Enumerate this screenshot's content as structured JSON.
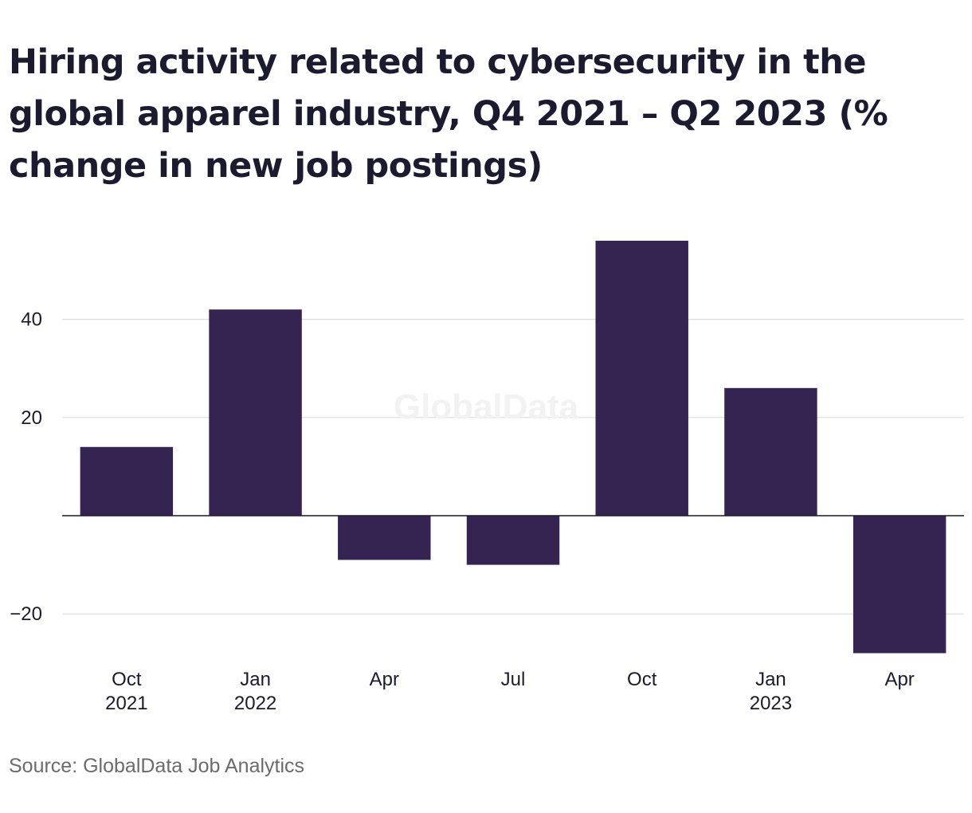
{
  "title": "Hiring activity related to cybersecurity in the global apparel industry, Q4 2021 – Q2 2023 (% change in new job postings)",
  "source": "Source: GlobalData Job Analytics",
  "watermark": "GlobalData",
  "colors": {
    "bar": "#352452",
    "grid": "#dcdcdc",
    "axis": "#1b1a2e",
    "text": "#1b1a2e"
  },
  "chart_data": {
    "type": "bar",
    "title": "Hiring activity related to cybersecurity in the global apparel industry, Q4 2021 – Q2 2023 (% change in new job postings)",
    "categories": [
      "Oct 2021",
      "Jan 2022",
      "Apr",
      "Jul",
      "Oct",
      "Jan 2023",
      "Apr"
    ],
    "category_labels": [
      [
        "Oct",
        "2021"
      ],
      [
        "Jan",
        "2022"
      ],
      [
        "Apr",
        ""
      ],
      [
        "Jul",
        ""
      ],
      [
        "Oct",
        ""
      ],
      [
        "Jan",
        "2023"
      ],
      [
        "Apr",
        ""
      ]
    ],
    "values": [
      14,
      42,
      -9,
      -10,
      56,
      26,
      -28
    ],
    "xlabel": "",
    "ylabel": "",
    "ylim": [
      -28,
      56
    ],
    "yticks": [
      -20,
      20,
      40
    ],
    "ytick_labels": [
      "−20",
      "20",
      "40"
    ],
    "grid": true
  }
}
